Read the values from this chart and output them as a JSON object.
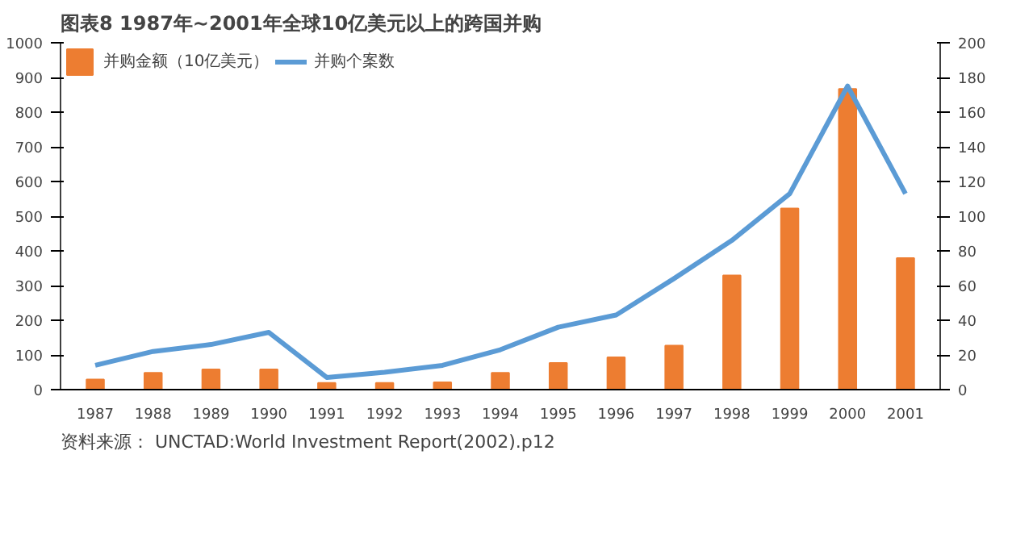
{
  "chart_data": {
    "type": "bar",
    "title": "图表8   1987年~2001年全球10亿美元以上的跨国并购",
    "categories": [
      "1987",
      "1988",
      "1989",
      "1990",
      "1991",
      "1992",
      "1993",
      "1994",
      "1995",
      "1996",
      "1997",
      "1998",
      "1999",
      "2000",
      "2001"
    ],
    "series": [
      {
        "name": "并购金额（10亿美元）",
        "color": "#ed7d31",
        "values": [
          29,
          48,
          58,
          58,
          19,
          19,
          21,
          48,
          77,
          93,
          127,
          329,
          522,
          867,
          379
        ]
      },
      {
        "name": "并购个案数",
        "type": "line",
        "axis": "y2",
        "color": "#5b9bd5",
        "values": [
          14,
          22,
          26,
          33,
          7,
          10,
          14,
          23,
          36,
          43,
          64,
          86,
          113,
          175,
          113
        ]
      }
    ],
    "ylim": [
      0,
      1000
    ],
    "yticks": [
      0,
      100,
      200,
      300,
      400,
      500,
      600,
      700,
      800,
      900,
      1000
    ],
    "y2lim": [
      0,
      200
    ],
    "y2ticks": [
      0,
      20,
      40,
      60,
      80,
      100,
      120,
      140,
      160,
      180,
      200
    ],
    "grid": false,
    "legend": "top left",
    "annotations": [
      "资料来源：  UNCTAD:World Investment Report(2002).p12"
    ]
  }
}
